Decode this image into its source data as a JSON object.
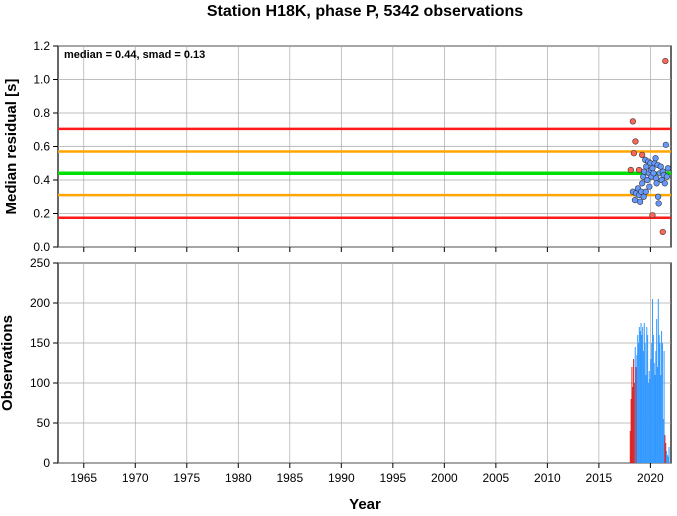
{
  "chart_data": {
    "title": "Station H18K, phase P, 5342 observations",
    "xlabel": "Year",
    "xlim": [
      1962.5,
      2022
    ],
    "x_ticks": [
      "1965",
      "1970",
      "1975",
      "1980",
      "1985",
      "1990",
      "1995",
      "2000",
      "2005",
      "2010",
      "2015",
      "2020"
    ],
    "grid": true,
    "panels": [
      {
        "type": "scatter",
        "ylabel": "Median residual [s]",
        "ylim": [
          0,
          1.2
        ],
        "y_ticks": [
          "0.0",
          "0.2",
          "0.4",
          "0.6",
          "0.8",
          "1.0",
          "1.2"
        ],
        "annotation": "median = 0.44, smad = 0.13",
        "reference_lines": [
          {
            "y": 0.705,
            "color": "#ff1a1a"
          },
          {
            "y": 0.57,
            "color": "#ffa500"
          },
          {
            "y": 0.44,
            "color": "#00e000"
          },
          {
            "y": 0.31,
            "color": "#ffa500"
          },
          {
            "y": 0.175,
            "color": "#ff1a1a"
          }
        ],
        "series": [
          {
            "color": "#6699ff",
            "points": [
              [
                2018.3,
                0.33
              ],
              [
                2018.5,
                0.28
              ],
              [
                2018.6,
                0.32
              ],
              [
                2018.8,
                0.35
              ],
              [
                2018.9,
                0.31
              ],
              [
                2019.0,
                0.27
              ],
              [
                2019.1,
                0.33
              ],
              [
                2019.2,
                0.38
              ],
              [
                2019.3,
                0.42
              ],
              [
                2019.35,
                0.3
              ],
              [
                2019.4,
                0.45
              ],
              [
                2019.5,
                0.52
              ],
              [
                2019.55,
                0.33
              ],
              [
                2019.6,
                0.48
              ],
              [
                2019.7,
                0.4
              ],
              [
                2019.8,
                0.51
              ],
              [
                2019.85,
                0.44
              ],
              [
                2019.9,
                0.36
              ],
              [
                2020.0,
                0.5
              ],
              [
                2020.05,
                0.46
              ],
              [
                2020.1,
                0.42
              ],
              [
                2020.2,
                0.47
              ],
              [
                2020.3,
                0.44
              ],
              [
                2020.4,
                0.5
              ],
              [
                2020.5,
                0.53
              ],
              [
                2020.55,
                0.41
              ],
              [
                2020.6,
                0.38
              ],
              [
                2020.7,
                0.49
              ],
              [
                2020.75,
                0.3
              ],
              [
                2020.8,
                0.26
              ],
              [
                2020.9,
                0.44
              ],
              [
                2021.0,
                0.48
              ],
              [
                2021.1,
                0.4
              ],
              [
                2021.2,
                0.45
              ],
              [
                2021.3,
                0.43
              ],
              [
                2021.4,
                0.38
              ],
              [
                2021.5,
                0.61
              ],
              [
                2021.6,
                0.42
              ],
              [
                2021.7,
                0.47
              ]
            ]
          },
          {
            "color": "#ff6655",
            "points": [
              [
                2018.1,
                0.46
              ],
              [
                2018.3,
                0.75
              ],
              [
                2018.4,
                0.56
              ],
              [
                2018.55,
                0.63
              ],
              [
                2018.9,
                0.46
              ],
              [
                2019.2,
                0.55
              ],
              [
                2020.2,
                0.19
              ],
              [
                2021.2,
                0.09
              ],
              [
                2021.45,
                1.11
              ]
            ]
          }
        ]
      },
      {
        "type": "bar",
        "ylabel": "Observations",
        "ylim": [
          0,
          250
        ],
        "y_ticks": [
          "0",
          "50",
          "100",
          "150",
          "200",
          "250"
        ],
        "bar_width_years": 0.08,
        "colors": {
          "regular": "#3399ff",
          "outlier": "#dd2222"
        },
        "bars": [
          [
            2018.0,
            40,
            1
          ],
          [
            2018.08,
            80,
            1
          ],
          [
            2018.16,
            120,
            1
          ],
          [
            2018.24,
            95,
            1
          ],
          [
            2018.32,
            130,
            1
          ],
          [
            2018.4,
            100,
            1
          ],
          [
            2018.48,
            145,
            0
          ],
          [
            2018.56,
            120,
            1
          ],
          [
            2018.64,
            135,
            0
          ],
          [
            2018.72,
            160,
            0
          ],
          [
            2018.8,
            150,
            0
          ],
          [
            2018.88,
            170,
            0
          ],
          [
            2018.96,
            165,
            0
          ],
          [
            2019.04,
            175,
            0
          ],
          [
            2019.12,
            160,
            0
          ],
          [
            2019.2,
            170,
            0
          ],
          [
            2019.28,
            140,
            0
          ],
          [
            2019.36,
            175,
            0
          ],
          [
            2019.44,
            150,
            0
          ],
          [
            2019.52,
            110,
            0
          ],
          [
            2019.6,
            170,
            0
          ],
          [
            2019.68,
            160,
            0
          ],
          [
            2019.76,
            100,
            0
          ],
          [
            2019.84,
            115,
            0
          ],
          [
            2019.92,
            105,
            0
          ],
          [
            2020.0,
            130,
            0
          ],
          [
            2020.08,
            150,
            0
          ],
          [
            2020.16,
            205,
            0
          ],
          [
            2020.24,
            160,
            0
          ],
          [
            2020.32,
            125,
            0
          ],
          [
            2020.4,
            110,
            0
          ],
          [
            2020.48,
            140,
            0
          ],
          [
            2020.56,
            180,
            0
          ],
          [
            2020.64,
            120,
            0
          ],
          [
            2020.72,
            205,
            0
          ],
          [
            2020.8,
            160,
            0
          ],
          [
            2020.88,
            150,
            0
          ],
          [
            2020.96,
            110,
            0
          ],
          [
            2021.04,
            165,
            0
          ],
          [
            2021.12,
            150,
            0
          ],
          [
            2021.2,
            55,
            0
          ],
          [
            2021.28,
            140,
            0
          ],
          [
            2021.36,
            35,
            1
          ],
          [
            2021.44,
            25,
            1
          ],
          [
            2021.52,
            15,
            0
          ],
          [
            2021.6,
            10,
            0
          ],
          [
            2021.68,
            8,
            0
          ],
          [
            2021.76,
            20,
            0
          ]
        ]
      }
    ]
  }
}
